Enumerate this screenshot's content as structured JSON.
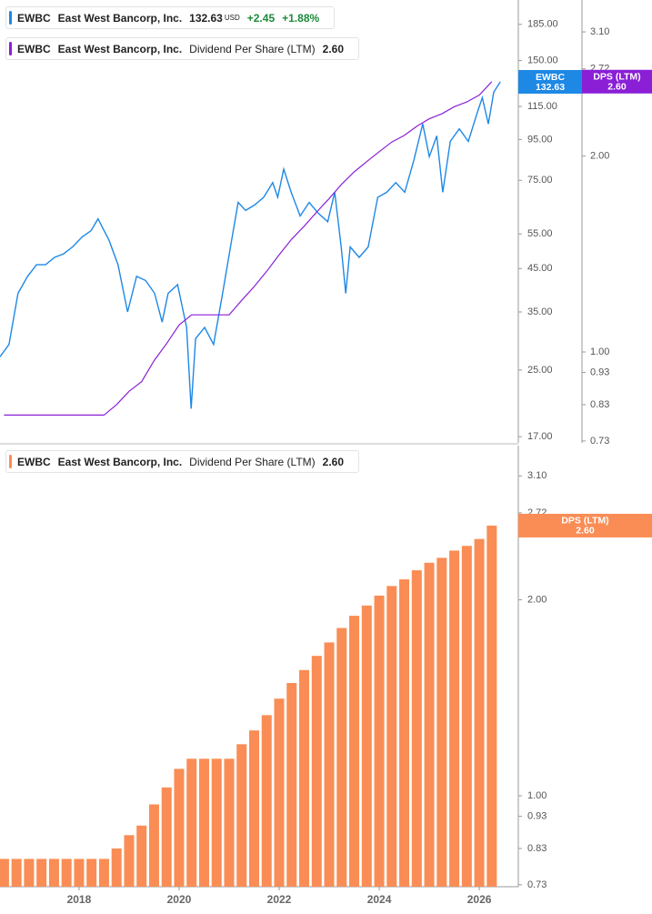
{
  "chart_data": [
    {
      "type": "line",
      "legend": [
        {
          "symbol": "EWBC",
          "name": "East West Bancorp, Inc.",
          "last": 132.63,
          "currency": "USD",
          "change": "+2.45",
          "change_pct": "+1.88%"
        },
        {
          "symbol": "EWBC",
          "name": "East West Bancorp, Inc.",
          "indicator": "Dividend Per Share (LTM)",
          "last": "2.60"
        }
      ],
      "log_scale": true,
      "xlim": [
        2016.42,
        2026.78
      ],
      "ylim": [
        16.4,
        213
      ],
      "yticks": [
        {
          "value": 185,
          "label": "185.00"
        },
        {
          "value": 150,
          "label": "150.00"
        },
        {
          "value": 115,
          "label": "115.00"
        },
        {
          "value": 95,
          "label": "95.00"
        },
        {
          "value": 75,
          "label": "75.00"
        },
        {
          "value": 55,
          "label": "55.00"
        },
        {
          "value": 45,
          "label": "45.00"
        },
        {
          "value": 35,
          "label": "35.00"
        },
        {
          "value": 25,
          "label": "25.00"
        },
        {
          "value": 17,
          "label": "17.00"
        }
      ],
      "y2lim": [
        0.725,
        3.47
      ],
      "y2ticks": [
        {
          "value": 3.1,
          "label": "3.10"
        },
        2.72,
        {
          "value": 2,
          "label": "2.00"
        },
        {
          "value": 1,
          "label": "1.00"
        },
        0.93,
        0.83,
        0.73
      ],
      "series": [
        {
          "name": "EWBC",
          "color": "#1e88e5",
          "x": [
            2016.42,
            2016.6,
            2016.78,
            2016.97,
            2017.15,
            2017.33,
            2017.51,
            2017.69,
            2017.87,
            2018.06,
            2018.24,
            2018.38,
            2018.6,
            2018.78,
            2018.97,
            2019.15,
            2019.33,
            2019.51,
            2019.66,
            2019.78,
            2019.97,
            2020.15,
            2020.24,
            2020.33,
            2020.51,
            2020.69,
            2020.87,
            2021.06,
            2021.18,
            2021.33,
            2021.51,
            2021.69,
            2021.87,
            2021.97,
            2022.09,
            2022.24,
            2022.42,
            2022.6,
            2022.78,
            2022.97,
            2023.11,
            2023.24,
            2023.33,
            2023.42,
            2023.6,
            2023.78,
            2023.97,
            2024.15,
            2024.33,
            2024.51,
            2024.69,
            2024.87,
            2025.0,
            2025.15,
            2025.27,
            2025.42,
            2025.6,
            2025.78,
            2025.97,
            2026.06,
            2026.18,
            2026.29,
            2026.42
          ],
          "values": [
            27,
            29,
            39,
            43,
            46,
            46,
            48,
            49,
            51,
            54,
            56,
            60,
            53,
            46,
            35,
            43,
            42,
            39,
            33,
            39,
            41,
            32,
            20,
            30,
            32,
            29,
            39,
            54,
            66,
            63,
            65,
            68,
            74,
            68,
            80,
            70,
            61,
            66,
            62,
            59,
            70,
            51,
            39,
            51,
            48,
            51,
            68,
            70,
            74,
            70,
            84,
            104,
            86,
            97,
            70,
            94,
            101,
            94,
            112,
            121,
            104,
            125,
            132.63
          ]
        },
        {
          "name": "DPS (LTM)",
          "color": "#8a1fd6",
          "axis": "y2",
          "x": [
            2016.5,
            2016.75,
            2017,
            2017.25,
            2017.5,
            2017.75,
            2018,
            2018.25,
            2018.5,
            2018.75,
            2019,
            2019.25,
            2019.5,
            2019.75,
            2020,
            2020.25,
            2020.5,
            2020.75,
            2021,
            2021.25,
            2021.5,
            2021.75,
            2022,
            2022.25,
            2022.5,
            2022.75,
            2023,
            2023.25,
            2023.5,
            2023.75,
            2024,
            2024.25,
            2024.5,
            2024.75,
            2025,
            2025.25,
            2025.5,
            2025.75,
            2026,
            2026.25
          ],
          "values": [
            0.8,
            0.8,
            0.8,
            0.8,
            0.8,
            0.8,
            0.8,
            0.8,
            0.8,
            0.83,
            0.87,
            0.9,
            0.97,
            1.03,
            1.1,
            1.14,
            1.14,
            1.14,
            1.14,
            1.2,
            1.26,
            1.33,
            1.41,
            1.49,
            1.56,
            1.64,
            1.72,
            1.81,
            1.89,
            1.96,
            2.03,
            2.1,
            2.15,
            2.22,
            2.28,
            2.32,
            2.38,
            2.42,
            2.48,
            2.6
          ]
        }
      ],
      "badges": [
        {
          "label": "EWBC",
          "value": 132.63,
          "color": "#1e88e5"
        },
        {
          "label": "DPS (LTM)",
          "value": 2.6,
          "value_label": "2.60",
          "color": "#8a1fd6",
          "axis": "y2"
        }
      ]
    },
    {
      "type": "bar",
      "legend": [
        {
          "symbol": "EWBC",
          "name": "East West Bancorp, Inc.",
          "indicator": "Dividend Per Share (LTM)",
          "last": "2.60"
        }
      ],
      "log_scale": true,
      "xlim": [
        2016.42,
        2026.78
      ],
      "xticks": [
        2018,
        2020,
        2022,
        2024,
        2026
      ],
      "ylim": [
        0.725,
        3.45
      ],
      "yticks": [
        {
          "value": 3.1,
          "label": "3.10"
        },
        2.72,
        {
          "value": 2,
          "label": "2.00"
        },
        {
          "value": 1,
          "label": "1.00"
        },
        0.93,
        0.83,
        0.73
      ],
      "series": [
        {
          "name": "DPS (LTM)",
          "color": "#f98d55",
          "x": [
            2016.5,
            2016.75,
            2017,
            2017.25,
            2017.5,
            2017.75,
            2018,
            2018.25,
            2018.5,
            2018.75,
            2019,
            2019.25,
            2019.5,
            2019.75,
            2020,
            2020.25,
            2020.5,
            2020.75,
            2021,
            2021.25,
            2021.5,
            2021.75,
            2022,
            2022.25,
            2022.5,
            2022.75,
            2023,
            2023.25,
            2023.5,
            2023.75,
            2024,
            2024.25,
            2024.5,
            2024.75,
            2025,
            2025.25,
            2025.5,
            2025.75,
            2026,
            2026.25
          ],
          "values": [
            0.8,
            0.8,
            0.8,
            0.8,
            0.8,
            0.8,
            0.8,
            0.8,
            0.8,
            0.83,
            0.87,
            0.9,
            0.97,
            1.03,
            1.1,
            1.14,
            1.14,
            1.14,
            1.14,
            1.2,
            1.26,
            1.33,
            1.41,
            1.49,
            1.56,
            1.64,
            1.72,
            1.81,
            1.89,
            1.96,
            2.03,
            2.1,
            2.15,
            2.22,
            2.28,
            2.32,
            2.38,
            2.42,
            2.48,
            2.6
          ]
        }
      ],
      "badges": [
        {
          "label": "DPS (LTM)",
          "value": 2.6,
          "value_label": "2.60",
          "color": "#f98d55"
        }
      ]
    }
  ]
}
